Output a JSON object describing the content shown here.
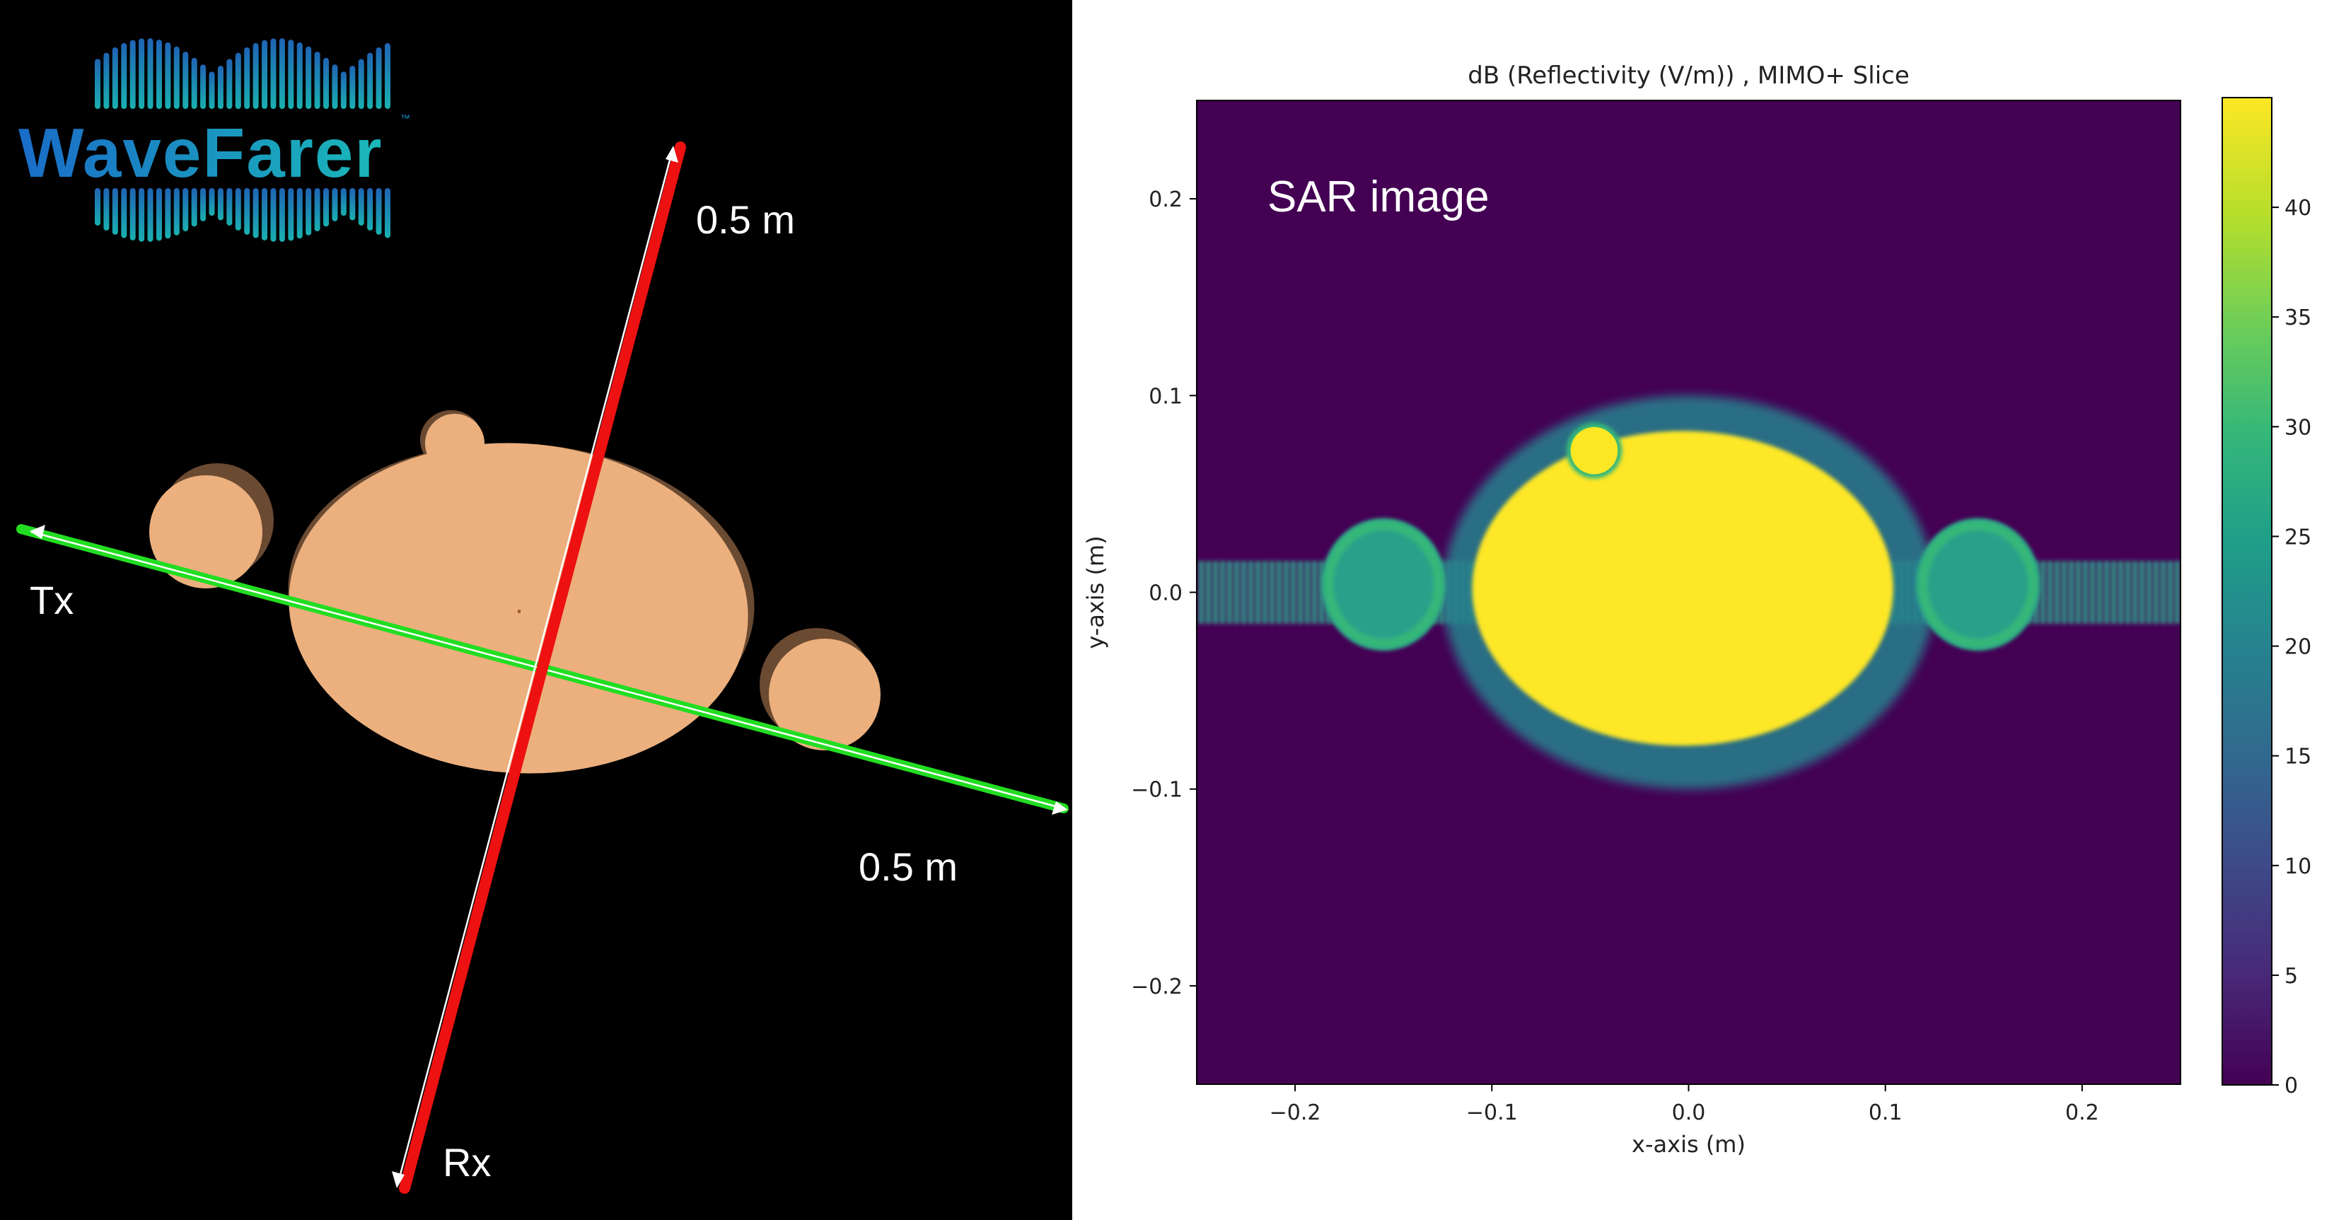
{
  "logo": {
    "text": "WaveFarer",
    "trademark": "™",
    "colors": {
      "wave_top": "#1f64b4",
      "wave_bottom": "#1ab0b0",
      "text": "#1d8fd0"
    }
  },
  "scene": {
    "background": "#000000",
    "body_color": "#ebb07e",
    "shadow_color": "#6b4a32",
    "tx_axis_color": "#22dd22",
    "rx_axis_color": "#ee1111",
    "labels": {
      "tx": "Tx",
      "rx": "Rx",
      "rx_length": "0.5 m",
      "tx_length": "0.5 m"
    }
  },
  "chart_data": {
    "type": "heatmap",
    "title": "dB (Reflectivity (V/m)) , MIMO+ Slice",
    "xlabel": "x-axis (m)",
    "ylabel": "y-axis (m)",
    "xlim": [
      -0.25,
      0.25
    ],
    "ylim": [
      -0.25,
      0.25
    ],
    "xticks": [
      -0.2,
      -0.1,
      0.0,
      0.1,
      0.2
    ],
    "yticks": [
      -0.2,
      -0.1,
      0.0,
      0.1,
      0.2
    ],
    "xtick_labels": [
      "−0.2",
      "−0.1",
      "0.0",
      "0.1",
      "0.2"
    ],
    "ytick_labels": [
      "−0.2",
      "−0.1",
      "0.0",
      "0.1",
      "0.2"
    ],
    "annotation": "SAR image",
    "colormap": "viridis",
    "colorbar": {
      "min": 0,
      "max": 45,
      "ticks": [
        0,
        5,
        10,
        15,
        20,
        25,
        30,
        35,
        40
      ],
      "tick_labels": [
        "0",
        "5",
        "10",
        "15",
        "20",
        "25",
        "30",
        "35",
        "40"
      ]
    },
    "features": [
      {
        "shape": "ellipse",
        "cx": -0.003,
        "cy": 0.002,
        "rx": 0.107,
        "ry": 0.08,
        "value": 44
      },
      {
        "shape": "circle",
        "cx": -0.048,
        "cy": 0.072,
        "r": 0.012,
        "value": 44
      },
      {
        "shape": "ring",
        "cx": -0.155,
        "cy": 0.004,
        "rx": 0.028,
        "ry": 0.03,
        "value": 30
      },
      {
        "shape": "ring",
        "cx": 0.147,
        "cy": 0.004,
        "rx": 0.028,
        "ry": 0.03,
        "value": 30
      },
      {
        "shape": "halo",
        "cx": 0.0,
        "cy": 0.0,
        "rx": 0.125,
        "ry": 0.1,
        "value": 22
      },
      {
        "shape": "sidelobe",
        "x": [
          -0.25,
          0.25
        ],
        "y": 0.0,
        "half_height": 0.016,
        "value": 21
      }
    ]
  }
}
